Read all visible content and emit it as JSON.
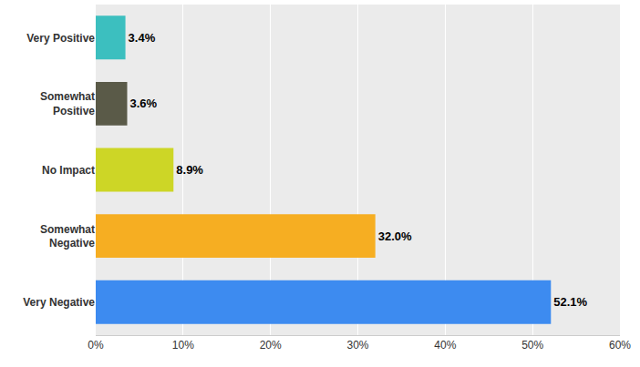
{
  "chart_data": {
    "type": "bar",
    "orientation": "horizontal",
    "categories": [
      "Very Positive",
      "Somewhat Positive",
      "No Impact",
      "Somewhat Negative",
      "Very Negative"
    ],
    "values": [
      3.4,
      3.6,
      8.9,
      32.0,
      52.1
    ],
    "value_labels": [
      "3.4%",
      "3.6%",
      "8.9%",
      "32.0%",
      "52.1%"
    ],
    "colors": [
      "#3cbfbf",
      "#5a5a48",
      "#cdd626",
      "#f6ae22",
      "#3d8bf0"
    ],
    "xlim": [
      0,
      60
    ],
    "xticks": [
      {
        "value": 0,
        "label": "0%"
      },
      {
        "value": 10,
        "label": "10%"
      },
      {
        "value": 20,
        "label": "20%"
      },
      {
        "value": 30,
        "label": "30%"
      },
      {
        "value": 40,
        "label": "40%"
      },
      {
        "value": 50,
        "label": "50%"
      },
      {
        "value": 60,
        "label": "60%"
      }
    ],
    "grid": true,
    "data_labels": true
  }
}
